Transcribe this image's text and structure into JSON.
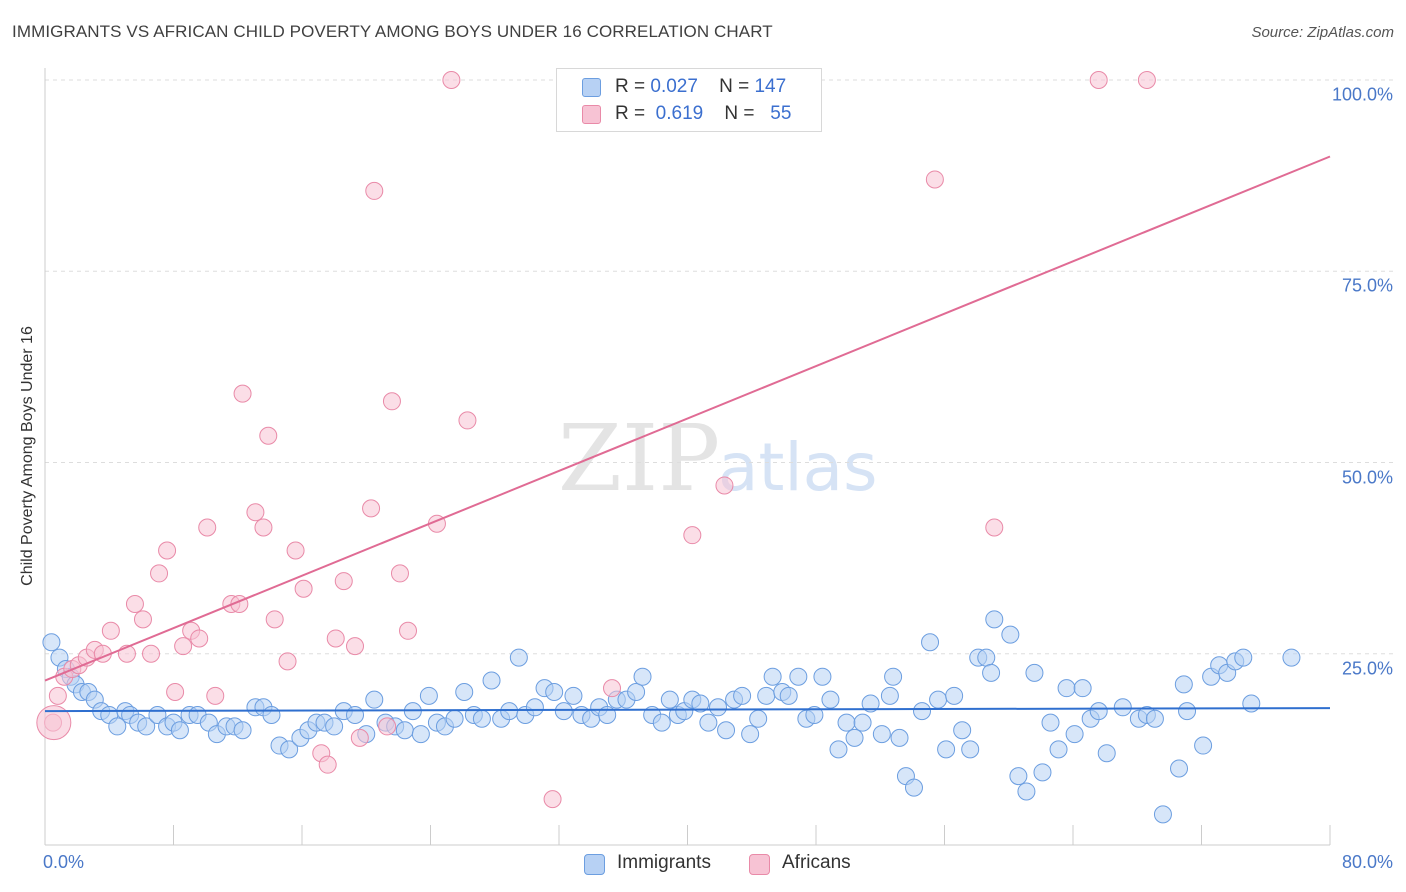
{
  "title": "IMMIGRANTS VS AFRICAN CHILD POVERTY AMONG BOYS UNDER 16 CORRELATION CHART",
  "source": "Source: ZipAtlas.com",
  "watermark": {
    "part1": "ZIP",
    "part2": "atlas"
  },
  "colors": {
    "immigrants_fill": "#b7d1f4",
    "immigrants_stroke": "#6c9ee0",
    "immigrants_line": "#2f6fcf",
    "africans_fill": "#f7c3d4",
    "africans_stroke": "#e98aa8",
    "africans_line": "#e06b94",
    "grid": "#dddddd",
    "tick_text": "#4a78c8"
  },
  "stats": [
    {
      "r_label": "R =",
      "r": "0.027",
      "n_label": "N =",
      "n": "147"
    },
    {
      "r_label": "R =",
      "r": "0.619",
      "n_label": "N =",
      "n": "55"
    }
  ],
  "legend": {
    "immigrants": "Immigrants",
    "africans": "Africans"
  },
  "chart_data": {
    "type": "scatter",
    "title": "IMMIGRANTS VS AFRICAN CHILD POVERTY AMONG BOYS UNDER 16 CORRELATION CHART",
    "xlabel": "",
    "ylabel": "Child Poverty Among Boys Under 16",
    "xlim": [
      0,
      80
    ],
    "ylim": [
      0,
      100
    ],
    "x_tick_labels": [
      "0.0%",
      "80.0%"
    ],
    "y_ticks": [
      25,
      50,
      75,
      100
    ],
    "y_tick_labels": [
      "25.0%",
      "50.0%",
      "75.0%",
      "100.0%"
    ],
    "grid": true,
    "legend_position": "bottom-center",
    "series": [
      {
        "name": "Immigrants",
        "trend": {
          "x": [
            0,
            80
          ],
          "y": [
            17.5,
            17.9
          ]
        },
        "points": [
          [
            0.4,
            26.5
          ],
          [
            0.9,
            24.5
          ],
          [
            1.3,
            23
          ],
          [
            1.6,
            22
          ],
          [
            1.9,
            21
          ],
          [
            2.3,
            20
          ],
          [
            2.7,
            20
          ],
          [
            3.1,
            19
          ],
          [
            3.5,
            17.5
          ],
          [
            4.0,
            17
          ],
          [
            5.0,
            17.5
          ],
          [
            5.3,
            17
          ],
          [
            4.5,
            15.5
          ],
          [
            5.8,
            16
          ],
          [
            6.3,
            15.5
          ],
          [
            7.0,
            17
          ],
          [
            7.6,
            15.5
          ],
          [
            8.0,
            16
          ],
          [
            8.4,
            15
          ],
          [
            9.0,
            17
          ],
          [
            9.5,
            17
          ],
          [
            10.2,
            16
          ],
          [
            10.7,
            14.5
          ],
          [
            11.3,
            15.5
          ],
          [
            11.8,
            15.5
          ],
          [
            12.3,
            15
          ],
          [
            13.1,
            18
          ],
          [
            13.6,
            18
          ],
          [
            14.1,
            17
          ],
          [
            14.6,
            13
          ],
          [
            15.2,
            12.5
          ],
          [
            15.9,
            14
          ],
          [
            16.4,
            15
          ],
          [
            16.9,
            16
          ],
          [
            17.4,
            16
          ],
          [
            18.0,
            15.5
          ],
          [
            18.6,
            17.5
          ],
          [
            19.3,
            17
          ],
          [
            20.0,
            14.5
          ],
          [
            20.5,
            19
          ],
          [
            21.2,
            16
          ],
          [
            21.8,
            15.5
          ],
          [
            22.4,
            15
          ],
          [
            22.9,
            17.5
          ],
          [
            23.4,
            14.5
          ],
          [
            23.9,
            19.5
          ],
          [
            24.4,
            16
          ],
          [
            24.9,
            15.5
          ],
          [
            25.5,
            16.5
          ],
          [
            26.1,
            20
          ],
          [
            26.7,
            17
          ],
          [
            27.2,
            16.5
          ],
          [
            27.8,
            21.5
          ],
          [
            28.4,
            16.5
          ],
          [
            28.9,
            17.5
          ],
          [
            29.5,
            24.5
          ],
          [
            29.9,
            17
          ],
          [
            30.5,
            18
          ],
          [
            31.1,
            20.5
          ],
          [
            31.7,
            20
          ],
          [
            32.3,
            17.5
          ],
          [
            32.9,
            19.5
          ],
          [
            33.4,
            17
          ],
          [
            34.0,
            16.5
          ],
          [
            34.5,
            18
          ],
          [
            35.0,
            17
          ],
          [
            35.6,
            19
          ],
          [
            36.2,
            19
          ],
          [
            36.8,
            20
          ],
          [
            37.2,
            22
          ],
          [
            37.8,
            17
          ],
          [
            38.4,
            16
          ],
          [
            38.9,
            19
          ],
          [
            39.4,
            17
          ],
          [
            39.8,
            17.5
          ],
          [
            40.3,
            19
          ],
          [
            40.8,
            18.5
          ],
          [
            41.3,
            16
          ],
          [
            41.9,
            18
          ],
          [
            42.4,
            15
          ],
          [
            42.9,
            19
          ],
          [
            43.4,
            19.5
          ],
          [
            43.9,
            14.5
          ],
          [
            44.4,
            16.5
          ],
          [
            44.9,
            19.5
          ],
          [
            45.3,
            22
          ],
          [
            45.9,
            20
          ],
          [
            46.3,
            19.5
          ],
          [
            46.9,
            22
          ],
          [
            47.4,
            16.5
          ],
          [
            47.9,
            17
          ],
          [
            48.4,
            22
          ],
          [
            48.9,
            19
          ],
          [
            49.4,
            12.5
          ],
          [
            49.9,
            16
          ],
          [
            50.4,
            14
          ],
          [
            50.9,
            16
          ],
          [
            51.4,
            18.5
          ],
          [
            52.1,
            14.5
          ],
          [
            52.6,
            19.5
          ],
          [
            52.8,
            22
          ],
          [
            53.2,
            14
          ],
          [
            53.6,
            9
          ],
          [
            54.1,
            7.5
          ],
          [
            54.6,
            17.5
          ],
          [
            55.1,
            26.5
          ],
          [
            55.6,
            19
          ],
          [
            56.1,
            12.5
          ],
          [
            56.6,
            19.5
          ],
          [
            57.1,
            15
          ],
          [
            57.6,
            12.5
          ],
          [
            58.1,
            24.5
          ],
          [
            58.6,
            24.5
          ],
          [
            58.9,
            22.5
          ],
          [
            59.1,
            29.5
          ],
          [
            60.1,
            27.5
          ],
          [
            60.6,
            9
          ],
          [
            61.1,
            7
          ],
          [
            61.6,
            22.5
          ],
          [
            62.1,
            9.5
          ],
          [
            62.6,
            16
          ],
          [
            63.1,
            12.5
          ],
          [
            63.6,
            20.5
          ],
          [
            64.1,
            14.5
          ],
          [
            64.6,
            20.5
          ],
          [
            65.1,
            16.5
          ],
          [
            65.6,
            17.5
          ],
          [
            66.1,
            12
          ],
          [
            67.1,
            18
          ],
          [
            68.1,
            16.5
          ],
          [
            68.6,
            17
          ],
          [
            69.1,
            16.5
          ],
          [
            69.6,
            4
          ],
          [
            70.6,
            10
          ],
          [
            70.9,
            21
          ],
          [
            71.1,
            17.5
          ],
          [
            72.1,
            13
          ],
          [
            72.6,
            22
          ],
          [
            73.1,
            23.5
          ],
          [
            73.6,
            22.5
          ],
          [
            74.1,
            24
          ],
          [
            74.6,
            24.5
          ],
          [
            75.1,
            18.5
          ],
          [
            77.6,
            24.5
          ]
        ]
      },
      {
        "name": "Africans",
        "trend": {
          "x": [
            0,
            80
          ],
          "y": [
            21.5,
            90
          ]
        },
        "points": [
          [
            0.5,
            16
          ],
          [
            0.8,
            19.5
          ],
          [
            1.2,
            22
          ],
          [
            1.7,
            23
          ],
          [
            2.1,
            23.5
          ],
          [
            2.6,
            24.5
          ],
          [
            3.1,
            25.5
          ],
          [
            3.6,
            25
          ],
          [
            4.1,
            28
          ],
          [
            5.1,
            25
          ],
          [
            5.6,
            31.5
          ],
          [
            6.1,
            29.5
          ],
          [
            6.6,
            25
          ],
          [
            7.1,
            35.5
          ],
          [
            7.6,
            38.5
          ],
          [
            8.1,
            20
          ],
          [
            8.6,
            26
          ],
          [
            9.1,
            28
          ],
          [
            9.6,
            27
          ],
          [
            10.1,
            41.5
          ],
          [
            10.6,
            19.5
          ],
          [
            11.6,
            31.5
          ],
          [
            12.1,
            31.5
          ],
          [
            12.3,
            59
          ],
          [
            13.1,
            43.5
          ],
          [
            13.6,
            41.5
          ],
          [
            13.9,
            53.5
          ],
          [
            14.3,
            29.5
          ],
          [
            15.1,
            24
          ],
          [
            15.6,
            38.5
          ],
          [
            16.1,
            33.5
          ],
          [
            17.2,
            12
          ],
          [
            17.6,
            10.5
          ],
          [
            18.1,
            27
          ],
          [
            18.6,
            34.5
          ],
          [
            19.3,
            26
          ],
          [
            19.6,
            14
          ],
          [
            20.3,
            44
          ],
          [
            20.5,
            85.5
          ],
          [
            21.3,
            15.5
          ],
          [
            21.6,
            58
          ],
          [
            22.1,
            35.5
          ],
          [
            22.6,
            28
          ],
          [
            24.4,
            42
          ],
          [
            25.3,
            100
          ],
          [
            26.3,
            55.5
          ],
          [
            31.6,
            6
          ],
          [
            35.3,
            20.5
          ],
          [
            40.3,
            40.5
          ],
          [
            42.3,
            47
          ],
          [
            55.4,
            87
          ],
          [
            59.1,
            41.5
          ],
          [
            65.6,
            100
          ],
          [
            68.6,
            100
          ]
        ]
      }
    ]
  }
}
